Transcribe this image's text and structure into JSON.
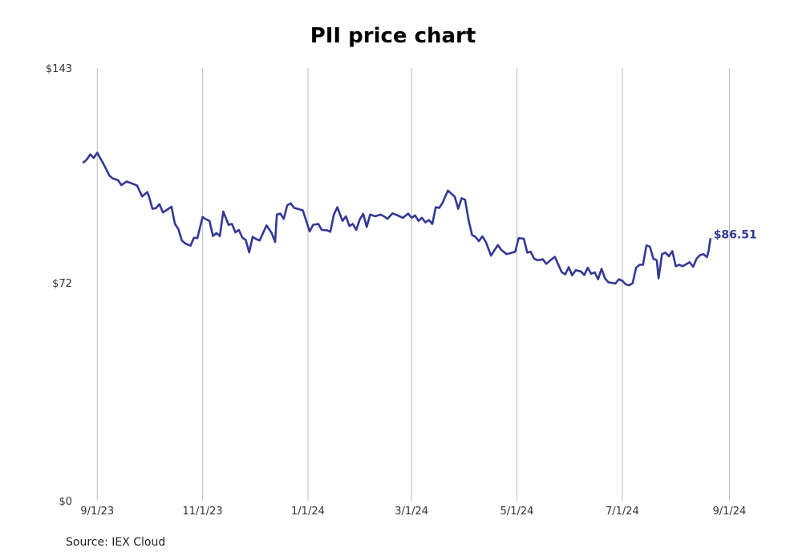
{
  "title": "PII price chart",
  "source": "Source: IEX Cloud",
  "chart_data": {
    "type": "line",
    "title": "PII price chart",
    "xlabel": "",
    "ylabel": "",
    "ylim": [
      0,
      143
    ],
    "xlim": [
      "2023-08-24",
      "2024-09-05"
    ],
    "y_ticks": [
      {
        "value": 0,
        "label": "$0"
      },
      {
        "value": 72,
        "label": "$72"
      },
      {
        "value": 143,
        "label": "$143"
      }
    ],
    "x_ticks": [
      {
        "date": "2023-09-01",
        "label": "9/1/23"
      },
      {
        "date": "2023-11-01",
        "label": "11/1/23"
      },
      {
        "date": "2024-01-01",
        "label": "1/1/24"
      },
      {
        "date": "2024-03-01",
        "label": "3/1/24"
      },
      {
        "date": "2024-05-01",
        "label": "5/1/24"
      },
      {
        "date": "2024-07-01",
        "label": "7/1/24"
      },
      {
        "date": "2024-09-01",
        "label": "9/1/24"
      }
    ],
    "grid": "vertical",
    "line_color": "#343895",
    "end_label": "$86.51",
    "series": [
      {
        "name": "",
        "points": [
          [
            "2023-08-24",
            111.8
          ],
          [
            "2023-08-26",
            112.8
          ],
          [
            "2023-08-28",
            114.5
          ],
          [
            "2023-08-30",
            113.3
          ],
          [
            "2023-09-01",
            115.0
          ],
          [
            "2023-09-04",
            112.0
          ],
          [
            "2023-09-06",
            109.8
          ],
          [
            "2023-09-08",
            107.5
          ],
          [
            "2023-09-10",
            106.5
          ],
          [
            "2023-09-13",
            106.0
          ],
          [
            "2023-09-15",
            104.3
          ],
          [
            "2023-09-18",
            105.5
          ],
          [
            "2023-09-21",
            104.9
          ],
          [
            "2023-09-24",
            104.2
          ],
          [
            "2023-09-27",
            100.6
          ],
          [
            "2023-09-30",
            102.0
          ],
          [
            "2023-10-01",
            100.5
          ],
          [
            "2023-10-03",
            96.5
          ],
          [
            "2023-10-05",
            96.7
          ],
          [
            "2023-10-07",
            98.0
          ],
          [
            "2023-10-09",
            95.3
          ],
          [
            "2023-10-12",
            96.4
          ],
          [
            "2023-10-14",
            97.2
          ],
          [
            "2023-10-16",
            91.5
          ],
          [
            "2023-10-18",
            89.8
          ],
          [
            "2023-10-20",
            86.0
          ],
          [
            "2023-10-22",
            85.0
          ],
          [
            "2023-10-25",
            84.3
          ],
          [
            "2023-10-27",
            86.9
          ],
          [
            "2023-10-29",
            86.8
          ],
          [
            "2023-11-01",
            93.8
          ],
          [
            "2023-11-03",
            93.0
          ],
          [
            "2023-11-05",
            92.5
          ],
          [
            "2023-11-07",
            87.5
          ],
          [
            "2023-11-09",
            88.5
          ],
          [
            "2023-11-11",
            87.5
          ],
          [
            "2023-11-13",
            95.6
          ],
          [
            "2023-11-16",
            91.2
          ],
          [
            "2023-11-18",
            91.5
          ],
          [
            "2023-11-20",
            88.7
          ],
          [
            "2023-11-22",
            89.5
          ],
          [
            "2023-11-24",
            87.0
          ],
          [
            "2023-11-26",
            86.2
          ],
          [
            "2023-11-28",
            82.1
          ],
          [
            "2023-11-30",
            87.2
          ],
          [
            "2023-12-02",
            86.5
          ],
          [
            "2023-12-04",
            86.0
          ],
          [
            "2023-12-06",
            88.5
          ],
          [
            "2023-12-08",
            91.0
          ],
          [
            "2023-12-11",
            88.5
          ],
          [
            "2023-12-13",
            85.5
          ],
          [
            "2023-12-14",
            94.6
          ],
          [
            "2023-12-16",
            94.9
          ],
          [
            "2023-12-18",
            93.2
          ],
          [
            "2023-12-20",
            97.6
          ],
          [
            "2023-12-22",
            98.3
          ],
          [
            "2023-12-24",
            96.8
          ],
          [
            "2023-12-26",
            96.5
          ],
          [
            "2023-12-29",
            96.0
          ],
          [
            "2024-01-02",
            89.0
          ],
          [
            "2024-01-04",
            91.2
          ],
          [
            "2024-01-07",
            91.5
          ],
          [
            "2024-01-09",
            89.5
          ],
          [
            "2024-01-12",
            89.4
          ],
          [
            "2024-01-14",
            88.9
          ],
          [
            "2024-01-16",
            94.5
          ],
          [
            "2024-01-18",
            97.0
          ],
          [
            "2024-01-21",
            92.5
          ],
          [
            "2024-01-23",
            94.0
          ],
          [
            "2024-01-25",
            90.8
          ],
          [
            "2024-01-27",
            91.5
          ],
          [
            "2024-01-29",
            89.5
          ],
          [
            "2024-01-31",
            93.0
          ],
          [
            "2024-02-02",
            94.8
          ],
          [
            "2024-02-04",
            90.5
          ],
          [
            "2024-02-06",
            94.6
          ],
          [
            "2024-02-09",
            94.0
          ],
          [
            "2024-02-12",
            94.6
          ],
          [
            "2024-02-14",
            94.0
          ],
          [
            "2024-02-16",
            93.2
          ],
          [
            "2024-02-19",
            95.0
          ],
          [
            "2024-02-22",
            94.3
          ],
          [
            "2024-02-25",
            93.5
          ],
          [
            "2024-02-28",
            94.9
          ],
          [
            "2024-03-01",
            93.5
          ],
          [
            "2024-03-03",
            94.3
          ],
          [
            "2024-03-05",
            92.5
          ],
          [
            "2024-03-07",
            93.5
          ],
          [
            "2024-03-09",
            92.0
          ],
          [
            "2024-03-11",
            92.8
          ],
          [
            "2024-03-13",
            91.5
          ],
          [
            "2024-03-15",
            97.0
          ],
          [
            "2024-03-17",
            96.8
          ],
          [
            "2024-03-19",
            98.5
          ],
          [
            "2024-03-22",
            102.5
          ],
          [
            "2024-03-24",
            101.5
          ],
          [
            "2024-03-26",
            100.5
          ],
          [
            "2024-03-28",
            96.5
          ],
          [
            "2024-03-30",
            100.0
          ],
          [
            "2024-04-01",
            99.5
          ],
          [
            "2024-04-03",
            92.8
          ],
          [
            "2024-04-05",
            87.9
          ],
          [
            "2024-04-07",
            87.2
          ],
          [
            "2024-04-09",
            85.8
          ],
          [
            "2024-04-11",
            87.4
          ],
          [
            "2024-04-13",
            85.5
          ],
          [
            "2024-04-16",
            81.0
          ],
          [
            "2024-04-18",
            82.8
          ],
          [
            "2024-04-20",
            84.5
          ],
          [
            "2024-04-22",
            82.9
          ],
          [
            "2024-04-25",
            81.5
          ],
          [
            "2024-04-27",
            81.8
          ],
          [
            "2024-04-30",
            82.3
          ],
          [
            "2024-05-02",
            86.8
          ],
          [
            "2024-05-05",
            86.6
          ],
          [
            "2024-05-07",
            82.0
          ],
          [
            "2024-05-09",
            82.3
          ],
          [
            "2024-05-11",
            80.0
          ],
          [
            "2024-05-13",
            79.5
          ],
          [
            "2024-05-16",
            79.8
          ],
          [
            "2024-05-18",
            78.3
          ],
          [
            "2024-05-21",
            79.8
          ],
          [
            "2024-05-23",
            80.6
          ],
          [
            "2024-05-25",
            78.0
          ],
          [
            "2024-05-27",
            75.5
          ],
          [
            "2024-05-29",
            74.8
          ],
          [
            "2024-05-31",
            77.2
          ],
          [
            "2024-06-02",
            74.5
          ],
          [
            "2024-06-04",
            76.2
          ],
          [
            "2024-06-07",
            75.8
          ],
          [
            "2024-06-09",
            74.6
          ],
          [
            "2024-06-11",
            77.0
          ],
          [
            "2024-06-13",
            75.0
          ],
          [
            "2024-06-15",
            75.5
          ],
          [
            "2024-06-17",
            73.2
          ],
          [
            "2024-06-19",
            76.7
          ],
          [
            "2024-06-21",
            73.5
          ],
          [
            "2024-06-23",
            72.2
          ],
          [
            "2024-06-25",
            72.0
          ],
          [
            "2024-06-27",
            71.8
          ],
          [
            "2024-06-29",
            73.2
          ],
          [
            "2024-07-01",
            72.7
          ],
          [
            "2024-07-03",
            71.5
          ],
          [
            "2024-07-05",
            71.2
          ],
          [
            "2024-07-07",
            71.9
          ],
          [
            "2024-07-09",
            77.0
          ],
          [
            "2024-07-11",
            78.0
          ],
          [
            "2024-07-13",
            78.0
          ],
          [
            "2024-07-15",
            84.4
          ],
          [
            "2024-07-17",
            84.0
          ],
          [
            "2024-07-19",
            80.0
          ],
          [
            "2024-07-21",
            79.5
          ],
          [
            "2024-07-22",
            73.5
          ],
          [
            "2024-07-24",
            81.5
          ],
          [
            "2024-07-26",
            82.0
          ],
          [
            "2024-07-28",
            80.8
          ],
          [
            "2024-07-30",
            82.5
          ],
          [
            "2024-08-01",
            77.5
          ],
          [
            "2024-08-03",
            78.0
          ],
          [
            "2024-08-05",
            77.5
          ],
          [
            "2024-08-07",
            78.2
          ],
          [
            "2024-08-09",
            78.8
          ],
          [
            "2024-08-11",
            77.3
          ],
          [
            "2024-08-13",
            80.0
          ],
          [
            "2024-08-15",
            81.2
          ],
          [
            "2024-08-17",
            81.5
          ],
          [
            "2024-08-19",
            80.5
          ],
          [
            "2024-08-20",
            82.5
          ],
          [
            "2024-08-21",
            86.51
          ]
        ]
      }
    ]
  }
}
